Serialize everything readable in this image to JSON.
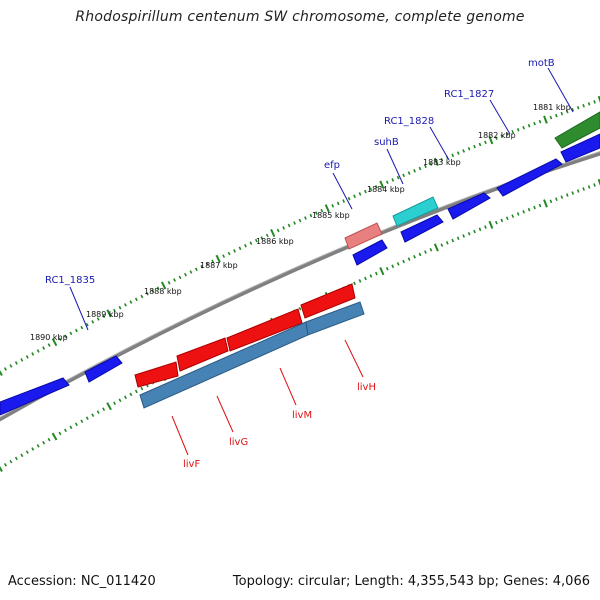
{
  "title": "Rhodospirillum centenum SW chromosome, complete genome",
  "footer": {
    "accession": "Accession: NC_011420",
    "topology": "Topology: circular; Length: 4,355,543 bp; Genes: 4,066"
  },
  "colors": {
    "backbone": "#808080",
    "scale_ticks": "#228822",
    "forward_gene": "#1a1aee",
    "rrna_green": "#2e8b2e",
    "cyan_gene": "#2ccfd0",
    "pink_gene": "#e98080",
    "red_gene": "#ee1111",
    "steelblue_gene": "#4682b4",
    "forward_label": "#1a1ab0",
    "reverse_label": "#dd1111"
  },
  "scale_labels": [
    "1881 kbp",
    "1882 kbp",
    "1883 kbp",
    "1884 kbp",
    "1885 kbp",
    "1886 kbp",
    "1887 kbp",
    "1888 kbp",
    "1889 kbp",
    "1890 kbp"
  ],
  "forward_genes": [
    "motB",
    "RC1_1827",
    "RC1_1828",
    "suhB",
    "efp",
    "RC1_1835"
  ],
  "reverse_genes": [
    "livH",
    "livM",
    "livG",
    "livF"
  ]
}
